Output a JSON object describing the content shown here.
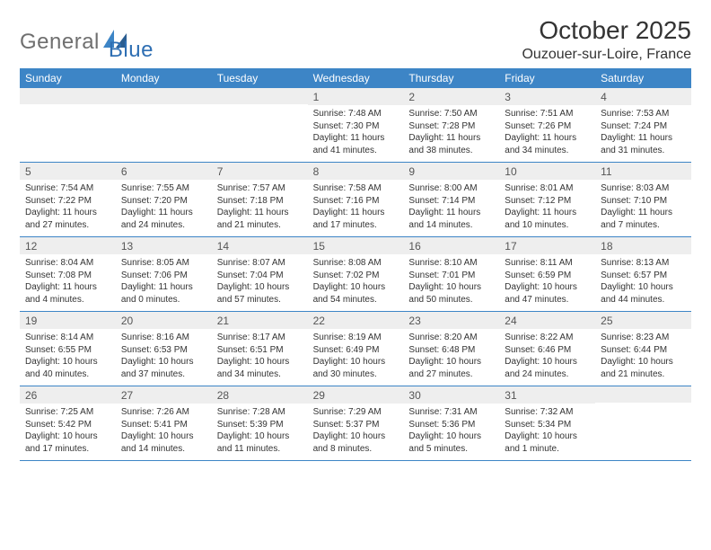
{
  "logo": {
    "text1": "General",
    "text2": "Blue"
  },
  "header": {
    "title": "October 2025",
    "location": "Ouzouer-sur-Loire, France"
  },
  "colors": {
    "header_bg": "#3d85c6",
    "header_text": "#ffffff",
    "daynum_bg": "#eeeeee",
    "border": "#3d85c6",
    "body_text": "#333333",
    "logo_gray": "#6f6f6f",
    "logo_blue": "#2f6fb3"
  },
  "dayNames": [
    "Sunday",
    "Monday",
    "Tuesday",
    "Wednesday",
    "Thursday",
    "Friday",
    "Saturday"
  ],
  "weeks": [
    [
      {
        "n": "",
        "sr": "",
        "ss": "",
        "dl1": "",
        "dl2": ""
      },
      {
        "n": "",
        "sr": "",
        "ss": "",
        "dl1": "",
        "dl2": ""
      },
      {
        "n": "",
        "sr": "",
        "ss": "",
        "dl1": "",
        "dl2": ""
      },
      {
        "n": "1",
        "sr": "Sunrise: 7:48 AM",
        "ss": "Sunset: 7:30 PM",
        "dl1": "Daylight: 11 hours",
        "dl2": "and 41 minutes."
      },
      {
        "n": "2",
        "sr": "Sunrise: 7:50 AM",
        "ss": "Sunset: 7:28 PM",
        "dl1": "Daylight: 11 hours",
        "dl2": "and 38 minutes."
      },
      {
        "n": "3",
        "sr": "Sunrise: 7:51 AM",
        "ss": "Sunset: 7:26 PM",
        "dl1": "Daylight: 11 hours",
        "dl2": "and 34 minutes."
      },
      {
        "n": "4",
        "sr": "Sunrise: 7:53 AM",
        "ss": "Sunset: 7:24 PM",
        "dl1": "Daylight: 11 hours",
        "dl2": "and 31 minutes."
      }
    ],
    [
      {
        "n": "5",
        "sr": "Sunrise: 7:54 AM",
        "ss": "Sunset: 7:22 PM",
        "dl1": "Daylight: 11 hours",
        "dl2": "and 27 minutes."
      },
      {
        "n": "6",
        "sr": "Sunrise: 7:55 AM",
        "ss": "Sunset: 7:20 PM",
        "dl1": "Daylight: 11 hours",
        "dl2": "and 24 minutes."
      },
      {
        "n": "7",
        "sr": "Sunrise: 7:57 AM",
        "ss": "Sunset: 7:18 PM",
        "dl1": "Daylight: 11 hours",
        "dl2": "and 21 minutes."
      },
      {
        "n": "8",
        "sr": "Sunrise: 7:58 AM",
        "ss": "Sunset: 7:16 PM",
        "dl1": "Daylight: 11 hours",
        "dl2": "and 17 minutes."
      },
      {
        "n": "9",
        "sr": "Sunrise: 8:00 AM",
        "ss": "Sunset: 7:14 PM",
        "dl1": "Daylight: 11 hours",
        "dl2": "and 14 minutes."
      },
      {
        "n": "10",
        "sr": "Sunrise: 8:01 AM",
        "ss": "Sunset: 7:12 PM",
        "dl1": "Daylight: 11 hours",
        "dl2": "and 10 minutes."
      },
      {
        "n": "11",
        "sr": "Sunrise: 8:03 AM",
        "ss": "Sunset: 7:10 PM",
        "dl1": "Daylight: 11 hours",
        "dl2": "and 7 minutes."
      }
    ],
    [
      {
        "n": "12",
        "sr": "Sunrise: 8:04 AM",
        "ss": "Sunset: 7:08 PM",
        "dl1": "Daylight: 11 hours",
        "dl2": "and 4 minutes."
      },
      {
        "n": "13",
        "sr": "Sunrise: 8:05 AM",
        "ss": "Sunset: 7:06 PM",
        "dl1": "Daylight: 11 hours",
        "dl2": "and 0 minutes."
      },
      {
        "n": "14",
        "sr": "Sunrise: 8:07 AM",
        "ss": "Sunset: 7:04 PM",
        "dl1": "Daylight: 10 hours",
        "dl2": "and 57 minutes."
      },
      {
        "n": "15",
        "sr": "Sunrise: 8:08 AM",
        "ss": "Sunset: 7:02 PM",
        "dl1": "Daylight: 10 hours",
        "dl2": "and 54 minutes."
      },
      {
        "n": "16",
        "sr": "Sunrise: 8:10 AM",
        "ss": "Sunset: 7:01 PM",
        "dl1": "Daylight: 10 hours",
        "dl2": "and 50 minutes."
      },
      {
        "n": "17",
        "sr": "Sunrise: 8:11 AM",
        "ss": "Sunset: 6:59 PM",
        "dl1": "Daylight: 10 hours",
        "dl2": "and 47 minutes."
      },
      {
        "n": "18",
        "sr": "Sunrise: 8:13 AM",
        "ss": "Sunset: 6:57 PM",
        "dl1": "Daylight: 10 hours",
        "dl2": "and 44 minutes."
      }
    ],
    [
      {
        "n": "19",
        "sr": "Sunrise: 8:14 AM",
        "ss": "Sunset: 6:55 PM",
        "dl1": "Daylight: 10 hours",
        "dl2": "and 40 minutes."
      },
      {
        "n": "20",
        "sr": "Sunrise: 8:16 AM",
        "ss": "Sunset: 6:53 PM",
        "dl1": "Daylight: 10 hours",
        "dl2": "and 37 minutes."
      },
      {
        "n": "21",
        "sr": "Sunrise: 8:17 AM",
        "ss": "Sunset: 6:51 PM",
        "dl1": "Daylight: 10 hours",
        "dl2": "and 34 minutes."
      },
      {
        "n": "22",
        "sr": "Sunrise: 8:19 AM",
        "ss": "Sunset: 6:49 PM",
        "dl1": "Daylight: 10 hours",
        "dl2": "and 30 minutes."
      },
      {
        "n": "23",
        "sr": "Sunrise: 8:20 AM",
        "ss": "Sunset: 6:48 PM",
        "dl1": "Daylight: 10 hours",
        "dl2": "and 27 minutes."
      },
      {
        "n": "24",
        "sr": "Sunrise: 8:22 AM",
        "ss": "Sunset: 6:46 PM",
        "dl1": "Daylight: 10 hours",
        "dl2": "and 24 minutes."
      },
      {
        "n": "25",
        "sr": "Sunrise: 8:23 AM",
        "ss": "Sunset: 6:44 PM",
        "dl1": "Daylight: 10 hours",
        "dl2": "and 21 minutes."
      }
    ],
    [
      {
        "n": "26",
        "sr": "Sunrise: 7:25 AM",
        "ss": "Sunset: 5:42 PM",
        "dl1": "Daylight: 10 hours",
        "dl2": "and 17 minutes."
      },
      {
        "n": "27",
        "sr": "Sunrise: 7:26 AM",
        "ss": "Sunset: 5:41 PM",
        "dl1": "Daylight: 10 hours",
        "dl2": "and 14 minutes."
      },
      {
        "n": "28",
        "sr": "Sunrise: 7:28 AM",
        "ss": "Sunset: 5:39 PM",
        "dl1": "Daylight: 10 hours",
        "dl2": "and 11 minutes."
      },
      {
        "n": "29",
        "sr": "Sunrise: 7:29 AM",
        "ss": "Sunset: 5:37 PM",
        "dl1": "Daylight: 10 hours",
        "dl2": "and 8 minutes."
      },
      {
        "n": "30",
        "sr": "Sunrise: 7:31 AM",
        "ss": "Sunset: 5:36 PM",
        "dl1": "Daylight: 10 hours",
        "dl2": "and 5 minutes."
      },
      {
        "n": "31",
        "sr": "Sunrise: 7:32 AM",
        "ss": "Sunset: 5:34 PM",
        "dl1": "Daylight: 10 hours",
        "dl2": "and 1 minute."
      },
      {
        "n": "",
        "sr": "",
        "ss": "",
        "dl1": "",
        "dl2": ""
      }
    ]
  ]
}
